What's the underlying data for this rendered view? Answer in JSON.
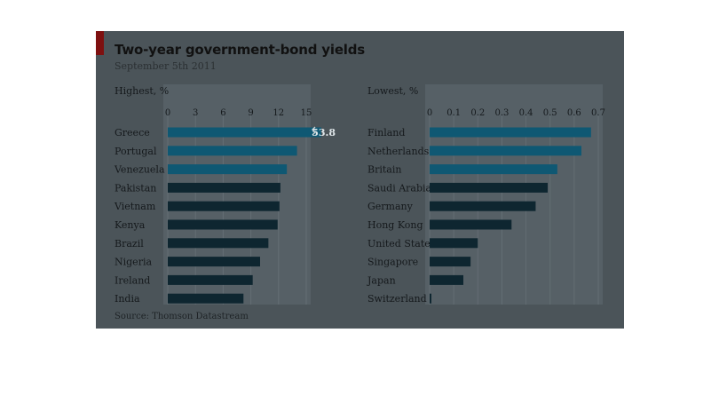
{
  "figure": {
    "title": "Two-year government-bond yields",
    "subtitle": "September 5th 2011",
    "source": "Source: Thomson Datastream"
  },
  "colors": {
    "figure_background": "#4b5459",
    "plot_band": "#566066",
    "bar_dark": "#0e2630",
    "bar_highlight": "#0f5873",
    "red_tab": "#7e1010"
  },
  "chart_data": [
    {
      "type": "bar",
      "orientation": "horizontal",
      "title": "Highest, %",
      "xlim": [
        0,
        15
      ],
      "ticks": [
        0,
        3,
        6,
        9,
        12,
        15
      ],
      "grid": true,
      "categories": [
        "Greece",
        "Portugal",
        "Venezuela",
        "Pakistan",
        "Vietnam",
        "Kenya",
        "Brazil",
        "Nigeria",
        "Ireland",
        "India"
      ],
      "values": [
        53.8,
        14.0,
        12.9,
        12.2,
        12.1,
        11.9,
        10.9,
        10.0,
        9.2,
        8.2
      ],
      "value_labels": {
        "Greece": "53.8"
      },
      "axis_break": {
        "Greece": true
      }
    },
    {
      "type": "bar",
      "orientation": "horizontal",
      "title": "Lowest, %",
      "xlim": [
        0,
        0.7
      ],
      "ticks": [
        0,
        0.1,
        0.2,
        0.3,
        0.4,
        0.5,
        0.6,
        0.7
      ],
      "grid": true,
      "categories": [
        "Finland",
        "Netherlands",
        "Britain",
        "Saudi Arabia",
        "Germany",
        "Hong Kong",
        "United States",
        "Singapore",
        "Japan",
        "Switzerland"
      ],
      "values": [
        0.67,
        0.63,
        0.53,
        0.49,
        0.44,
        0.34,
        0.2,
        0.17,
        0.14,
        0.005
      ]
    }
  ]
}
